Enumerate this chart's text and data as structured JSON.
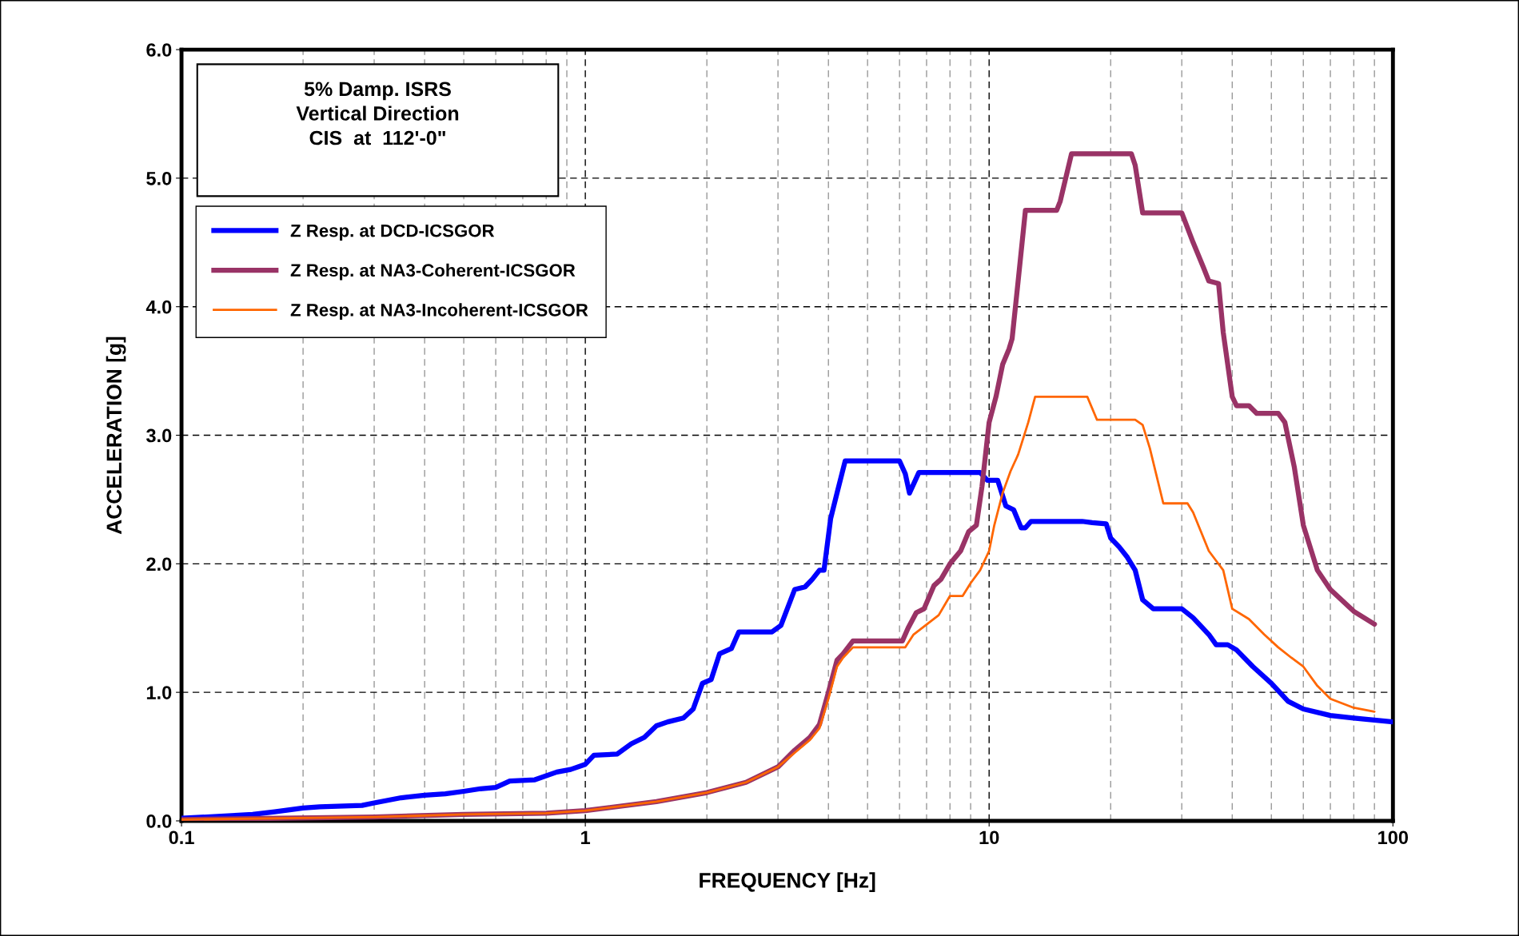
{
  "chart_data": {
    "type": "line",
    "xlabel": "FREQUENCY [Hz]",
    "ylabel": "ACCELERATION [g]",
    "annotations": [
      "5% Damp. ISRS\nVertical Direction\nCIS  at  112'-0\""
    ],
    "log": "x",
    "xlim": [
      0.1,
      100
    ],
    "xticks": [
      0.1,
      1,
      10,
      100
    ],
    "ylim": [
      0,
      6
    ],
    "yticks": [
      {
        "value": 0,
        "label": "0.0"
      },
      {
        "value": 1,
        "label": "1.0"
      },
      {
        "value": 2,
        "label": "2.0"
      },
      {
        "value": 3,
        "label": "3.0"
      },
      {
        "value": 4,
        "label": "4.0"
      },
      {
        "value": 5,
        "label": "5.0"
      },
      {
        "value": 6,
        "label": "6.0"
      }
    ],
    "grid": true,
    "legend": "top left",
    "line_style": "solid",
    "series": [
      {
        "name": "Z Resp. at DCD-ICSGOR",
        "color": "#0000ff",
        "x": [
          0.1,
          0.15,
          0.17,
          0.2,
          0.22,
          0.28,
          0.3,
          0.35,
          0.4,
          0.45,
          0.5,
          0.55,
          0.6,
          0.65,
          0.75,
          0.85,
          0.92,
          1.0,
          1.05,
          1.2,
          1.3,
          1.4,
          1.5,
          1.6,
          1.75,
          1.85,
          1.95,
          2.05,
          2.15,
          2.3,
          2.4,
          2.9,
          3.05,
          3.3,
          3.5,
          3.65,
          3.8,
          3.9,
          4.05,
          4.2,
          4.4,
          6.0,
          6.2,
          6.35,
          6.7,
          9.5,
          9.9,
          10.5,
          11,
          11.5,
          12,
          12.3,
          12.7,
          17,
          18,
          19.5,
          20,
          21,
          22,
          23,
          24,
          25.5,
          30,
          32,
          35,
          36.5,
          39,
          41,
          45,
          50,
          55,
          60,
          70,
          80,
          100
        ],
        "values": [
          0.02,
          0.05,
          0.07,
          0.1,
          0.11,
          0.12,
          0.14,
          0.18,
          0.2,
          0.21,
          0.23,
          0.25,
          0.26,
          0.31,
          0.32,
          0.38,
          0.4,
          0.44,
          0.51,
          0.52,
          0.6,
          0.65,
          0.74,
          0.77,
          0.8,
          0.87,
          1.07,
          1.1,
          1.3,
          1.34,
          1.47,
          1.47,
          1.52,
          1.8,
          1.82,
          1.88,
          1.95,
          1.95,
          2.35,
          2.55,
          2.8,
          2.8,
          2.7,
          2.55,
          2.71,
          2.71,
          2.65,
          2.65,
          2.45,
          2.42,
          2.28,
          2.28,
          2.33,
          2.33,
          2.32,
          2.31,
          2.2,
          2.13,
          2.05,
          1.95,
          1.72,
          1.65,
          1.65,
          1.58,
          1.45,
          1.37,
          1.37,
          1.33,
          1.2,
          1.07,
          0.93,
          0.87,
          0.82,
          0.8,
          0.77
        ]
      },
      {
        "name": "Z Resp. at NA3-Coherent-ICSGOR",
        "color": "#993366",
        "x": [
          0.1,
          0.3,
          0.5,
          0.8,
          1,
          1.5,
          2,
          2.5,
          3,
          3.3,
          3.6,
          3.8,
          4.0,
          4.2,
          4.35,
          4.6,
          6.1,
          6.3,
          6.6,
          6.9,
          7.3,
          7.6,
          8,
          8.5,
          8.9,
          9.3,
          9.6,
          10,
          10.4,
          10.8,
          11.2,
          11.4,
          11.8,
          12.3,
          14.7,
          15,
          16,
          22.5,
          23,
          24,
          30,
          32,
          34,
          35,
          37,
          38,
          40,
          41,
          44,
          46,
          52,
          54,
          57,
          60,
          65,
          70,
          80,
          90
        ],
        "values": [
          0.01,
          0.03,
          0.05,
          0.06,
          0.08,
          0.15,
          0.22,
          0.3,
          0.42,
          0.55,
          0.65,
          0.75,
          1.0,
          1.25,
          1.3,
          1.4,
          1.4,
          1.5,
          1.62,
          1.65,
          1.83,
          1.88,
          2.0,
          2.1,
          2.25,
          2.3,
          2.6,
          3.1,
          3.3,
          3.55,
          3.67,
          3.75,
          4.2,
          4.75,
          4.75,
          4.82,
          5.19,
          5.19,
          5.1,
          4.73,
          4.73,
          4.5,
          4.3,
          4.2,
          4.18,
          3.8,
          3.3,
          3.23,
          3.23,
          3.17,
          3.17,
          3.1,
          2.75,
          2.3,
          1.95,
          1.8,
          1.63,
          1.53
        ]
      },
      {
        "name": "Z Resp. at NA3-Incoherent-ICSGOR",
        "color": "#ff6600",
        "x": [
          0.1,
          0.3,
          0.5,
          0.8,
          1,
          1.5,
          2,
          2.5,
          3,
          3.3,
          3.6,
          3.8,
          4.0,
          4.2,
          4.35,
          4.6,
          6.2,
          6.5,
          7.5,
          8,
          8.6,
          9,
          9.5,
          10,
          10.3,
          10.8,
          11.3,
          11.8,
          12.5,
          13,
          17.5,
          18.5,
          23,
          24,
          25,
          27,
          31,
          32,
          35,
          38,
          40,
          44,
          48,
          52,
          56,
          60,
          65,
          70,
          80,
          90
        ],
        "values": [
          0.01,
          0.03,
          0.05,
          0.06,
          0.08,
          0.15,
          0.22,
          0.3,
          0.42,
          0.53,
          0.63,
          0.72,
          0.95,
          1.2,
          1.27,
          1.35,
          1.35,
          1.45,
          1.6,
          1.75,
          1.75,
          1.85,
          1.95,
          2.1,
          2.3,
          2.55,
          2.72,
          2.85,
          3.1,
          3.3,
          3.3,
          3.12,
          3.12,
          3.08,
          2.9,
          2.47,
          2.47,
          2.4,
          2.1,
          1.95,
          1.65,
          1.57,
          1.45,
          1.35,
          1.27,
          1.2,
          1.05,
          0.95,
          0.88,
          0.85
        ]
      }
    ]
  }
}
